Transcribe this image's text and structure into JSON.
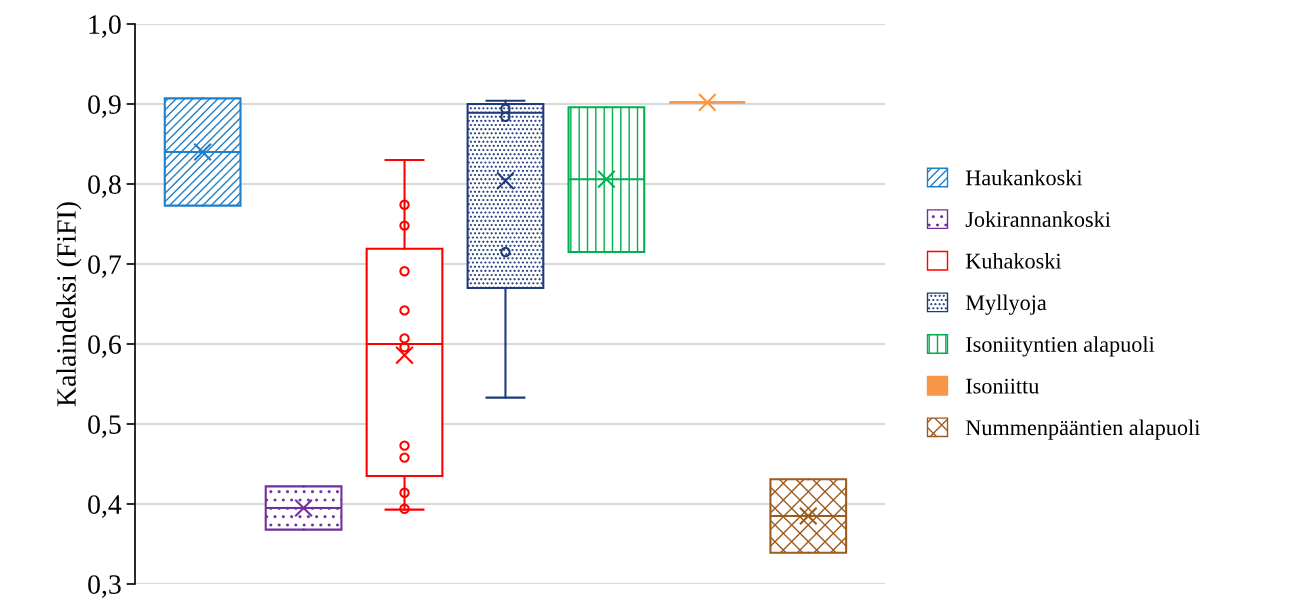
{
  "chart_data": {
    "type": "box",
    "ylabel": "Kalaindeksi (FiFI)",
    "categories": [
      null
    ],
    "ylim": [
      0.3,
      1.0
    ],
    "yticks": [
      {
        "value": 0.3,
        "label": "0,3"
      },
      {
        "value": 0.4,
        "label": "0,4"
      },
      {
        "value": 0.5,
        "label": "0,5"
      },
      {
        "value": 0.6,
        "label": "0,6"
      },
      {
        "value": 0.7,
        "label": "0,7"
      },
      {
        "value": 0.8,
        "label": "0,8"
      },
      {
        "value": 0.9,
        "label": "0,9"
      },
      {
        "value": 1.0,
        "label": "1,0"
      }
    ],
    "grid": "y",
    "legend": "right",
    "series": [
      {
        "name": "Haukankoski",
        "color": "#1f7fc8",
        "boxes": [
          {
            "low": 0.773,
            "q1": 0.773,
            "median": 0.84,
            "q3": 0.907,
            "high": 0.907,
            "mean": 0.84
          }
        ]
      },
      {
        "name": "Jokirannankoski",
        "color": "#7030a0",
        "boxes": [
          {
            "low": 0.368,
            "q1": 0.368,
            "median": 0.395,
            "q3": 0.422,
            "high": 0.422,
            "mean": 0.395
          }
        ]
      },
      {
        "name": "Kuhakoski",
        "color": "#ff0000",
        "boxes": [
          {
            "low": 0.393,
            "q1": 0.435,
            "median": 0.6,
            "q3": 0.719,
            "high": 0.83,
            "mean": 0.586,
            "outliers": [
              0.774,
              0.748,
              0.691,
              0.642,
              0.607,
              0.596,
              0.473,
              0.458,
              0.414,
              0.394
            ]
          }
        ]
      },
      {
        "name": "Myllyoja",
        "color": "#1f3a7a",
        "boxes": [
          {
            "low": 0.533,
            "q1": 0.67,
            "median": 0.889,
            "q3": 0.9,
            "high": 0.904,
            "mean": 0.804,
            "outliers": [
              0.894,
              0.884,
              0.715
            ]
          }
        ]
      },
      {
        "name": "Isoniityntien alapuoli",
        "color": "#00b050",
        "boxes": [
          {
            "low": 0.715,
            "q1": 0.715,
            "median": 0.806,
            "q3": 0.896,
            "high": 0.896,
            "mean": 0.806
          }
        ]
      },
      {
        "name": "Isoniittu",
        "color": "#f79646",
        "boxes": [
          {
            "low": 0.902,
            "q1": 0.902,
            "median": 0.902,
            "q3": 0.902,
            "high": 0.902,
            "mean": 0.902
          }
        ]
      },
      {
        "name": "Nummenpääntien alapuoli",
        "color": "#9c5a1c",
        "boxes": [
          {
            "low": 0.339,
            "q1": 0.339,
            "median": 0.385,
            "q3": 0.431,
            "high": 0.431,
            "mean": 0.385
          }
        ]
      }
    ]
  }
}
